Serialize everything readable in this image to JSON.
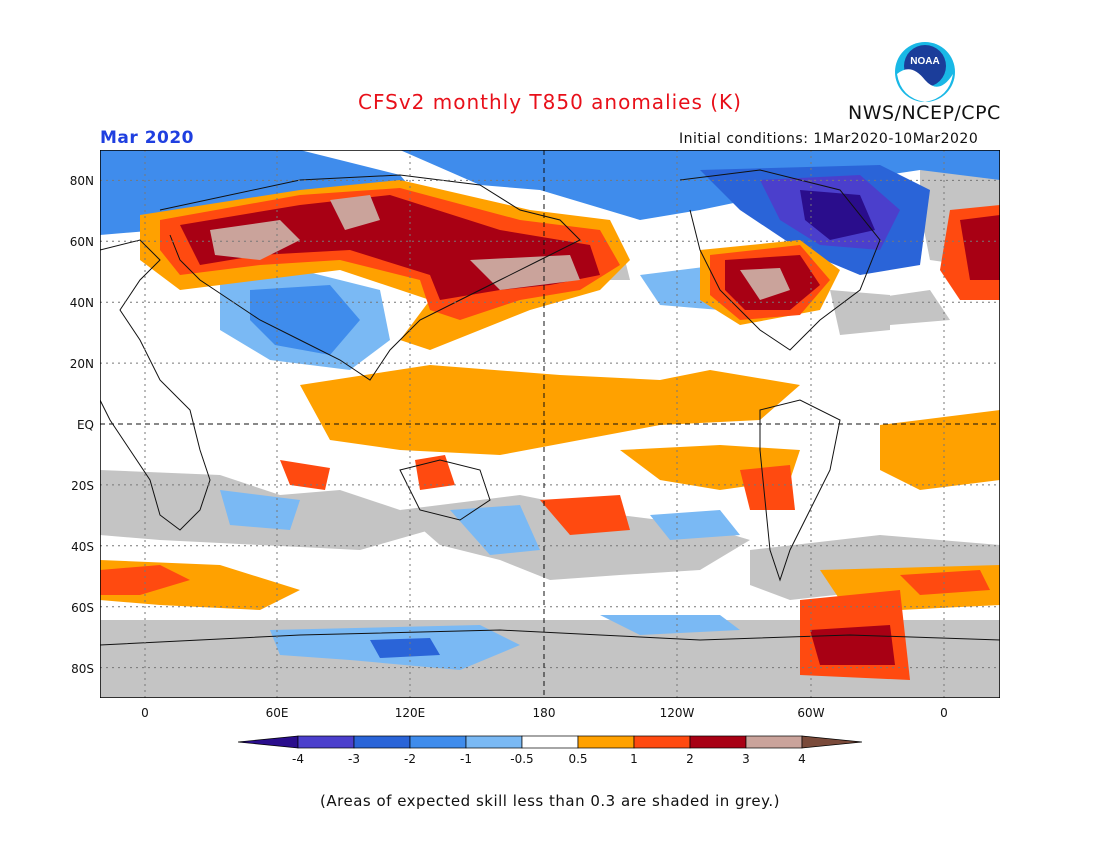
{
  "title": "CFSv2 monthly T850 anomalies (K)",
  "agency": "NWS/NCEP/CPC",
  "month": "Mar 2020",
  "initial_conditions": "Initial conditions: 1Mar2020-10Mar2020",
  "logo_text": "NOAA",
  "footnote": "(Areas of expected skill less than 0.3 are shaded in grey.)",
  "lat_labels": [
    "80N",
    "60N",
    "40N",
    "20N",
    "EQ",
    "20S",
    "40S",
    "60S",
    "80S"
  ],
  "lon_labels": [
    "0",
    "60E",
    "120E",
    "180",
    "120W",
    "60W",
    "0"
  ],
  "colorbar": {
    "labels": [
      "-4",
      "-3",
      "-2",
      "-1",
      "-0.5",
      "0.5",
      "1",
      "2",
      "3",
      "4"
    ],
    "colors": [
      "#2a0d8c",
      "#4b3fcc",
      "#2a64d8",
      "#3f8cec",
      "#7ab9f4",
      "#ffffff",
      "#ffa100",
      "#ff4a10",
      "#a80014",
      "#caa39b",
      "#7a4a3a"
    ]
  },
  "map_colors": {
    "grey": "#c4c4c4",
    "ocean": "#ffffff"
  }
}
